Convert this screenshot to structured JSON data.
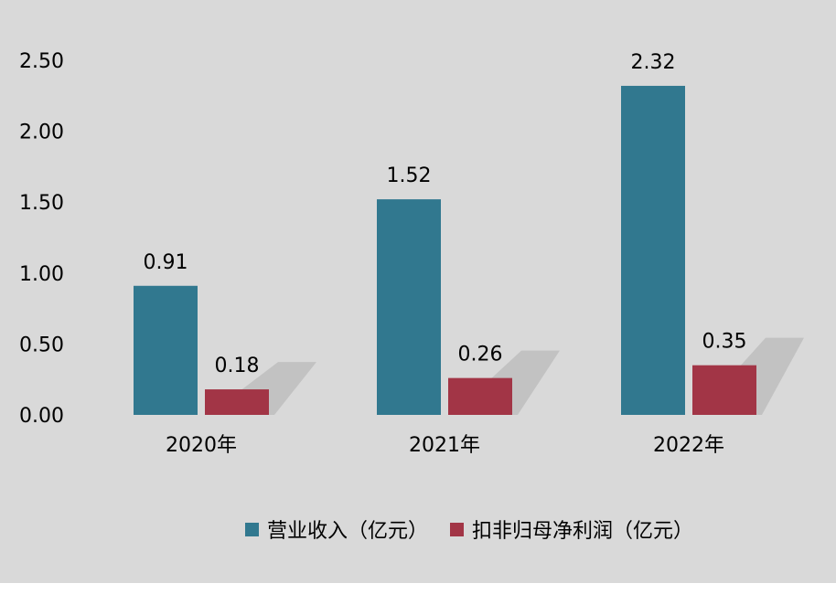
{
  "chart_data": {
    "type": "bar",
    "categories": [
      "2020年",
      "2021年",
      "2022年"
    ],
    "series": [
      {
        "name": "营业收入（亿元）",
        "values": [
          0.91,
          1.52,
          2.32
        ],
        "color": "#31788f"
      },
      {
        "name": "扣非归母净利润（亿元）",
        "values": [
          0.18,
          0.26,
          0.35
        ],
        "color": "#a23546"
      }
    ],
    "y_ticks": [
      "0.00",
      "0.50",
      "1.00",
      "1.50",
      "2.00",
      "2.50"
    ],
    "data_labels": [
      [
        "0.91",
        "1.52",
        "2.32"
      ],
      [
        "0.18",
        "0.26",
        "0.35"
      ]
    ],
    "ylim": [
      0,
      2.5
    ],
    "title": "",
    "xlabel": "",
    "ylabel": "",
    "grid": false,
    "legend_position": "bottom",
    "background": "#d9d9d9"
  }
}
